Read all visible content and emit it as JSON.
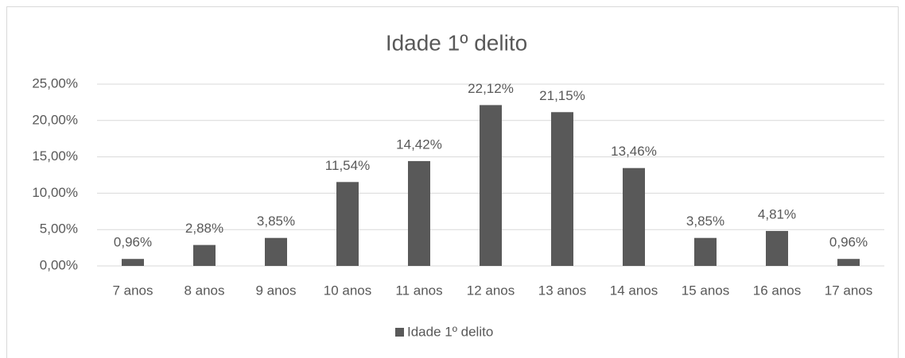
{
  "chart_data": {
    "type": "bar",
    "title": "Idade 1º delito",
    "categories": [
      "7 anos",
      "8 anos",
      "9 anos",
      "10 anos",
      "11 anos",
      "12 anos",
      "13 anos",
      "14 anos",
      "15 anos",
      "16 anos",
      "17 anos"
    ],
    "series": [
      {
        "name": "Idade 1º delito",
        "color": "#595959",
        "values": [
          0.96,
          2.88,
          3.85,
          11.54,
          14.42,
          22.12,
          21.15,
          13.46,
          3.85,
          4.81,
          0.96
        ],
        "value_labels": [
          "0,96%",
          "2,88%",
          "3,85%",
          "11,54%",
          "14,42%",
          "22,12%",
          "21,15%",
          "13,46%",
          "3,85%",
          "4,81%",
          "0,96%"
        ]
      }
    ],
    "ylim": [
      0,
      25
    ],
    "yticks": [
      {
        "value": 0,
        "label": "0,00%"
      },
      {
        "value": 5,
        "label": "5,00%"
      },
      {
        "value": 10,
        "label": "10,00%"
      },
      {
        "value": 15,
        "label": "15,00%"
      },
      {
        "value": 20,
        "label": "20,00%"
      },
      {
        "value": 25,
        "label": "25,00%"
      }
    ],
    "grid": true,
    "legend": "bottom"
  }
}
